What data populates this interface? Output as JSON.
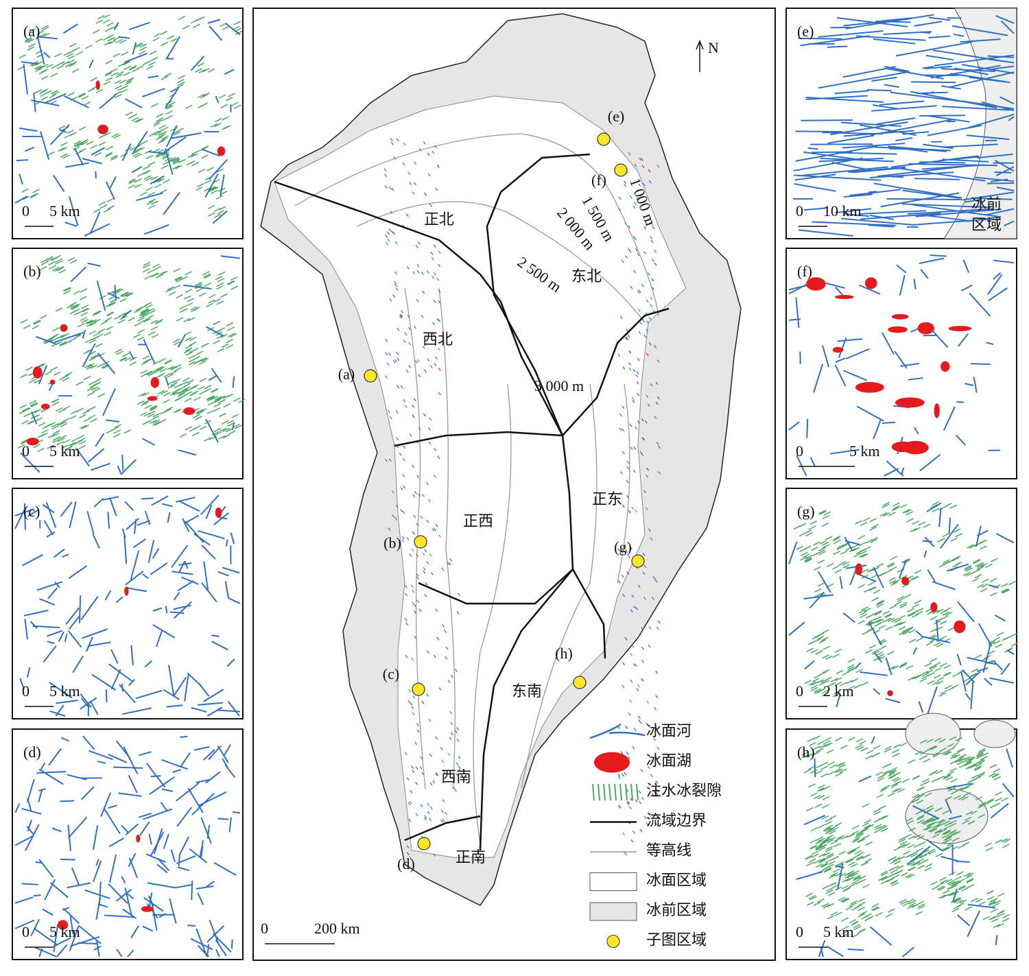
{
  "panels": [
    {
      "label": "(a)",
      "scale_zero": "0",
      "scale_label": "5 km"
    },
    {
      "label": "(b)",
      "scale_zero": "0",
      "scale_label": "5 km"
    },
    {
      "label": "(c)",
      "scale_zero": "0",
      "scale_label": "5 km"
    },
    {
      "label": "(d)",
      "scale_zero": "0",
      "scale_label": "5 km"
    },
    {
      "label": "(e)",
      "scale_zero": "0",
      "scale_label": "10 km",
      "note": [
        "冰前",
        "区域"
      ]
    },
    {
      "label": "(f)",
      "scale_zero": "0",
      "scale_label": "5 km"
    },
    {
      "label": "(g)",
      "scale_zero": "0",
      "scale_label": "2 km"
    },
    {
      "label": "(h)",
      "scale_zero": "0",
      "scale_label": "5 km"
    }
  ],
  "main_map": {
    "north": "N",
    "basins": [
      "正北",
      "东北",
      "西北",
      "正东",
      "正西",
      "西南",
      "东南",
      "正南"
    ],
    "contours": [
      "1 000 m",
      "1 500 m",
      "2 000 m",
      "2 500 m",
      "3 000 m"
    ],
    "site_labels": [
      "(a)",
      "(b)",
      "(c)",
      "(d)",
      "(e)",
      "(f)",
      "(g)",
      "(h)"
    ],
    "scale_zero": "0",
    "scale_label": "200 km"
  },
  "legend": [
    "冰面河",
    "冰面湖",
    "注水冰裂隙",
    "流域边界",
    "等高线",
    "冰面区域",
    "冰前区域",
    "子图区域"
  ]
}
